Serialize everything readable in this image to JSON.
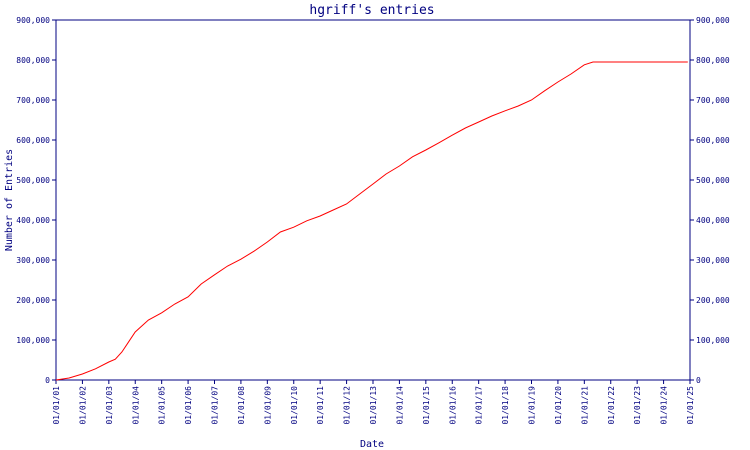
{
  "chart_data": {
    "type": "line",
    "title": "hgriff's entries",
    "xlabel": "Date",
    "ylabel": "Number of Entries",
    "grid": false,
    "x_ticks": [
      "01/01/01",
      "01/01/02",
      "01/01/03",
      "01/01/04",
      "01/01/05",
      "01/01/06",
      "01/01/07",
      "01/01/08",
      "01/01/09",
      "01/01/10",
      "01/01/11",
      "01/01/12",
      "01/01/13",
      "01/01/14",
      "01/01/15",
      "01/01/16",
      "01/01/17",
      "01/01/18",
      "01/01/19",
      "01/01/20",
      "01/01/21",
      "01/01/22",
      "01/01/23",
      "01/01/24",
      "01/01/25"
    ],
    "y_ticks": [
      "0",
      "100,000",
      "200,000",
      "300,000",
      "400,000",
      "500,000",
      "600,000",
      "700,000",
      "800,000",
      "900,000"
    ],
    "ylim": [
      0,
      900000
    ],
    "xlim": [
      "2001-01-01",
      "2025-01-01"
    ],
    "colors": {
      "axis": "#000080",
      "line": "#ff0000"
    },
    "series": [
      {
        "x": [
          "2001-01-01",
          "2001-07-01",
          "2002-01-01",
          "2002-07-01",
          "2003-01-01",
          "2003-04-01",
          "2003-07-01",
          "2004-01-01",
          "2004-07-01",
          "2005-01-01",
          "2005-07-01",
          "2006-01-01",
          "2006-07-01",
          "2007-01-01",
          "2007-07-01",
          "2008-01-01",
          "2008-07-01",
          "2009-01-01",
          "2009-07-01",
          "2010-01-01",
          "2010-07-01",
          "2011-01-01",
          "2011-07-01",
          "2012-01-01",
          "2012-07-01",
          "2013-01-01",
          "2013-07-01",
          "2014-01-01",
          "2014-07-01",
          "2015-01-01",
          "2015-07-01",
          "2016-01-01",
          "2016-07-01",
          "2017-01-01",
          "2017-07-01",
          "2018-01-01",
          "2018-07-01",
          "2019-01-01",
          "2019-07-01",
          "2020-01-01",
          "2020-07-01",
          "2021-01-01",
          "2021-05-01",
          "2022-01-01",
          "2023-01-01",
          "2024-01-01",
          "2024-12-01"
        ],
        "y": [
          0,
          5000,
          15000,
          28000,
          45000,
          52000,
          70000,
          120000,
          150000,
          168000,
          190000,
          208000,
          240000,
          263000,
          285000,
          302000,
          322000,
          345000,
          370000,
          382000,
          398000,
          410000,
          425000,
          440000,
          465000,
          490000,
          515000,
          535000,
          558000,
          575000,
          593000,
          612000,
          630000,
          645000,
          660000,
          673000,
          685000,
          700000,
          723000,
          745000,
          765000,
          788000,
          795000,
          795000,
          795000,
          795000,
          795000
        ]
      }
    ]
  }
}
